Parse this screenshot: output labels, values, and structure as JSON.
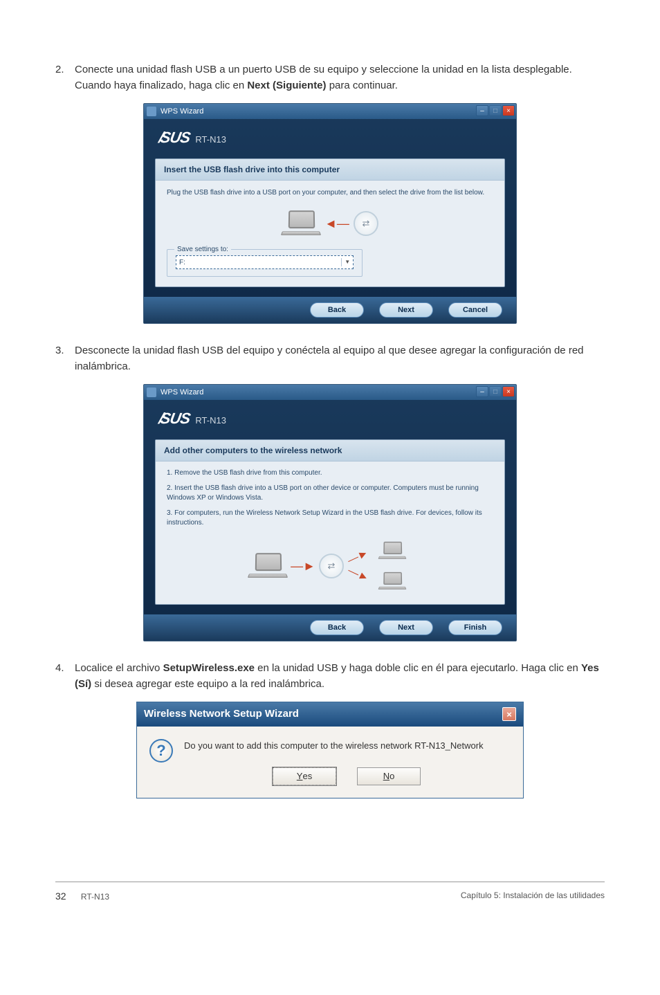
{
  "steps": {
    "s2": {
      "num": "2.",
      "text_pre": "Conecte una unidad flash USB a un puerto USB de su equipo y seleccione la unidad en la lista desplegable. Cuando haya finalizado, haga clic en ",
      "bold": "Next (Siguiente)",
      "text_post": " para continuar."
    },
    "s3": {
      "num": "3.",
      "text_pre": "Desconecte la unidad flash USB del equipo y conéctela al equipo al que desee agregar la configuración de red inalámbrica."
    },
    "s4": {
      "num": "4.",
      "text_pre": "Localice el archivo ",
      "bold1": "SetupWireless.exe",
      "mid": " en la unidad USB y haga doble clic en él para ejecutarlo. Haga clic en ",
      "bold2": "Yes (Sí)",
      "text_post": " si desea agregar este equipo a la red inalámbrica."
    }
  },
  "wps1": {
    "title": "WPS Wizard",
    "brand": "SUS",
    "model": "RT-N13",
    "panel_hdr": "Insert the USB flash drive into this computer",
    "panel_text": "Plug the USB flash drive into a USB port on your computer, and then select the drive from the list below.",
    "save_legend": "Save settings to:",
    "save_value": "F:",
    "back": "Back",
    "next": "Next",
    "cancel": "Cancel"
  },
  "wps2": {
    "title": "WPS Wizard",
    "brand": "SUS",
    "model": "RT-N13",
    "panel_hdr": "Add other computers to the wireless network",
    "line1": "1. Remove the USB flash drive from this computer.",
    "line2": "2. Insert the USB flash drive into a USB port on other device or computer. Computers must be running Windows XP or Windows Vista.",
    "line3": "3. For computers, run the Wireless Network Setup Wizard in the USB flash drive. For devices, follow its instructions.",
    "back": "Back",
    "next": "Next",
    "finish": "Finish"
  },
  "msgbox": {
    "title": "Wireless Network Setup Wizard",
    "body": "Do you want to add this computer to the wireless network RT-N13_Network",
    "yes_pre": "",
    "yes_u": "Y",
    "yes_post": "es",
    "no_u": "N",
    "no_post": "o"
  },
  "footer": {
    "page": "32",
    "left": "RT-N13",
    "right": "Capítulo 5: Instalación de las utilidades"
  }
}
